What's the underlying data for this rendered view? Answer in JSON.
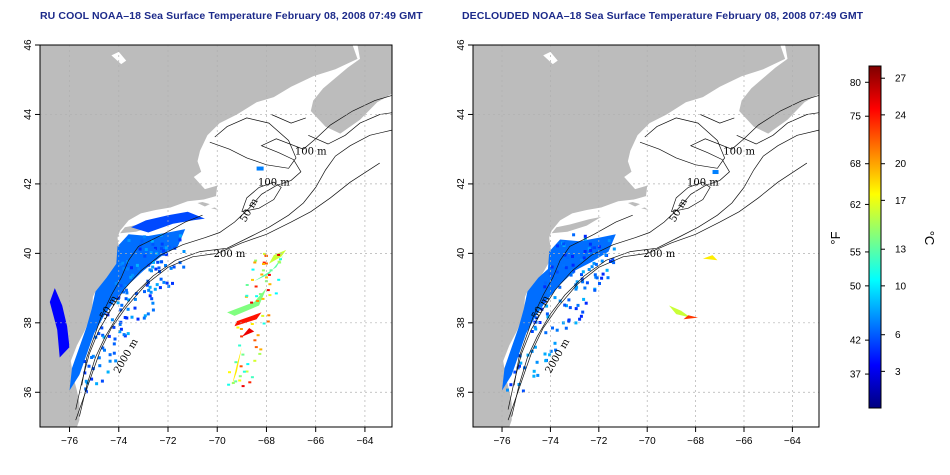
{
  "panels": [
    {
      "id": "left",
      "title": "RU COOL NOAA–18 Sea Surface Temperature February 08, 2008 07:49 GMT",
      "variant": "raw"
    },
    {
      "id": "right",
      "title": "DECLOUDED NOAA–18 Sea Surface Temperature February 08, 2008 07:49 GMT",
      "variant": "declouded"
    }
  ],
  "axes": {
    "x_ticks": [
      -76,
      -74,
      -72,
      -70,
      -68,
      -66,
      -64
    ],
    "y_ticks": [
      36,
      38,
      40,
      42,
      44,
      46
    ],
    "xlim": [
      -77.2,
      -62.9
    ],
    "ylim": [
      35,
      46
    ]
  },
  "contour_labels": [
    {
      "text": "100 m",
      "lon": -66.2,
      "lat": 42.85
    },
    {
      "text": "100 m",
      "lon": -67.7,
      "lat": 41.95
    },
    {
      "text": "50 m",
      "lon": -68.6,
      "lat": 41.2
    },
    {
      "text": "200 m",
      "lon": -69.5,
      "lat": 39.9
    },
    {
      "text": "50 m",
      "lon": -74.3,
      "lat": 38.4
    },
    {
      "text": "2000 m",
      "lon": -73.6,
      "lat": 37.0
    }
  ],
  "colorbar": {
    "fahrenheit_labels": [
      "80",
      "75",
      "68",
      "62",
      "55",
      "50",
      "42",
      "37"
    ],
    "celsius_labels": [
      "27",
      "24",
      "20",
      "17",
      "13",
      "10",
      "6",
      "3"
    ],
    "celsius_values": [
      27,
      24,
      20,
      17,
      13,
      10,
      6,
      3
    ],
    "range_celsius": [
      0,
      28
    ],
    "unit_f": "°F",
    "unit_c": "°C",
    "stops": [
      "#00007f",
      "#0000ff",
      "#0080ff",
      "#00ffff",
      "#80ff80",
      "#ffff00",
      "#ff8000",
      "#ff0000",
      "#7f0000"
    ]
  },
  "colors": {
    "land": "#bcbcbc",
    "grid": "#b0b0b0",
    "frame": "#000000",
    "title": "#1c2a8a"
  }
}
